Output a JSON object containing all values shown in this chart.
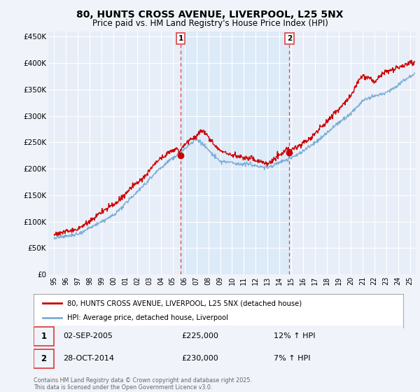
{
  "title": "80, HUNTS CROSS AVENUE, LIVERPOOL, L25 5NX",
  "subtitle": "Price paid vs. HM Land Registry's House Price Index (HPI)",
  "ylim": [
    0,
    460000
  ],
  "yticks": [
    0,
    50000,
    100000,
    150000,
    200000,
    250000,
    300000,
    350000,
    400000,
    450000
  ],
  "background_color": "#f0f4fa",
  "plot_bg_color": "#e8eef8",
  "highlight_color": "#ddeaf8",
  "grid_color": "#ffffff",
  "sale1_date": 2005.67,
  "sale1_price": 225000,
  "sale1_label": "1",
  "sale2_date": 2014.83,
  "sale2_price": 230000,
  "sale2_label": "2",
  "red_line_color": "#cc0000",
  "blue_line_color": "#7aaed6",
  "vline_color": "#dd4444",
  "legend_label_red": "80, HUNTS CROSS AVENUE, LIVERPOOL, L25 5NX (detached house)",
  "legend_label_blue": "HPI: Average price, detached house, Liverpool",
  "annotation1_date": "02-SEP-2005",
  "annotation1_price": "£225,000",
  "annotation1_hpi": "12% ↑ HPI",
  "annotation2_date": "28-OCT-2014",
  "annotation2_price": "£230,000",
  "annotation2_hpi": "7% ↑ HPI",
  "footer": "Contains HM Land Registry data © Crown copyright and database right 2025.\nThis data is licensed under the Open Government Licence v3.0.",
  "xlim_start": 1994.5,
  "xlim_end": 2025.5
}
